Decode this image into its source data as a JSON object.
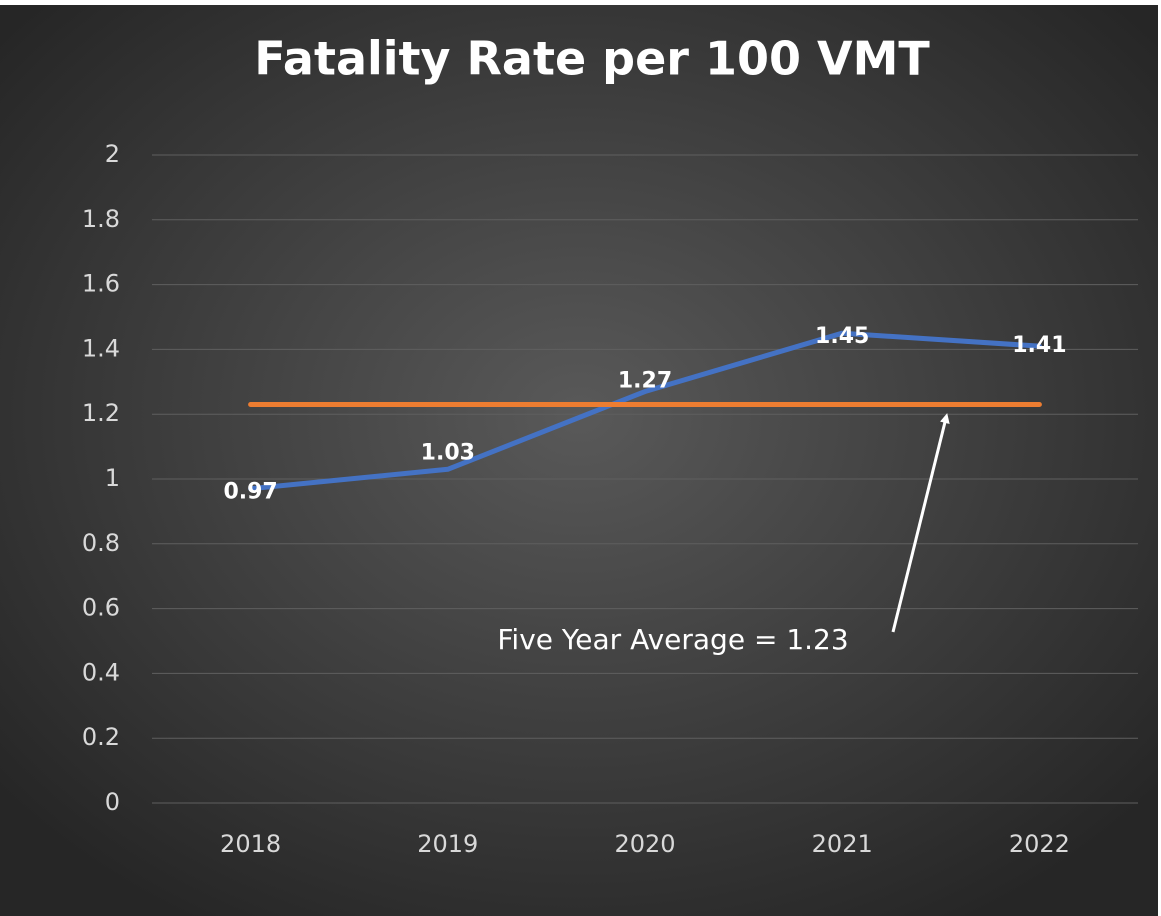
{
  "chart_data": {
    "type": "line",
    "title": "Fatality Rate per 100 VMT",
    "categories": [
      "2018",
      "2019",
      "2020",
      "2021",
      "2022"
    ],
    "series": [
      {
        "color": "#4472c4",
        "values": [
          0.97,
          1.03,
          1.27,
          1.45,
          1.41
        ],
        "data_labels": true
      },
      {
        "color": "#ed7d31",
        "values": [
          1.23,
          1.23,
          1.23,
          1.23,
          1.23
        ],
        "data_labels": false
      }
    ],
    "annotation": "Five Year Average = 1.23",
    "ylim": [
      0,
      2
    ],
    "yticks": [
      0,
      0.2,
      0.4,
      0.6,
      0.8,
      1,
      1.2,
      1.4,
      1.6,
      1.8,
      2
    ],
    "grid": true
  }
}
